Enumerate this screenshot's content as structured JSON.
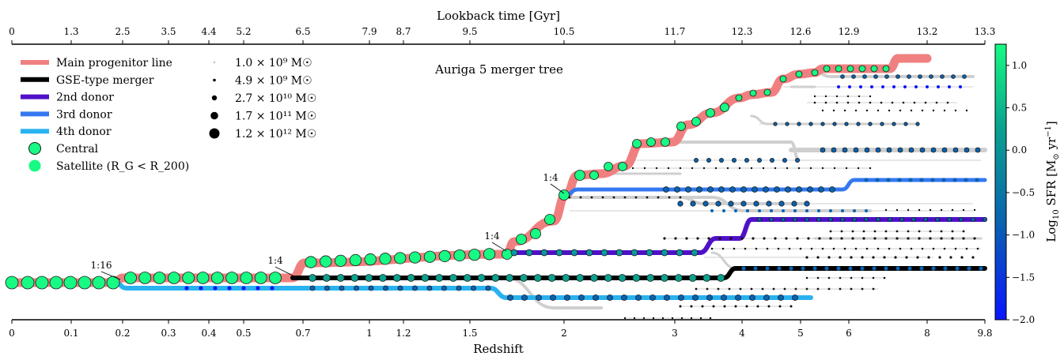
{
  "chart_data": {
    "type": "scatter",
    "title": "Auriga 5 merger tree",
    "bottom_axis": {
      "label": "Redshift",
      "ticks": [
        "0",
        "0.1",
        "0.2",
        "0.3",
        "0.4",
        "0.5",
        "0.7",
        "1",
        "1.2",
        "1.5",
        "2",
        "3",
        "4",
        "5",
        "6",
        "8",
        "9.8"
      ]
    },
    "top_axis": {
      "label": "Lookback time [Gyr]",
      "ticks": [
        "0",
        "1.3",
        "2.5",
        "3.5",
        "4.4",
        "5.2",
        "6.5",
        "7.9",
        "8.7",
        "9.5",
        "10.5",
        "11.7",
        "12.3",
        "12.6",
        "12.9",
        "13.2",
        "13.3"
      ]
    },
    "colorbar": {
      "label": "Log10 SFR [M☉ yr⁻¹]",
      "range": [
        -2.0,
        1.25
      ],
      "ticks": [
        "1.0",
        "0.5",
        "0.0",
        "−0.5",
        "−1.0",
        "−1.5",
        "−2.0"
      ],
      "colors": [
        "#0a14ff",
        "#0a62b0",
        "#0aa28f",
        "#17fa83"
      ]
    },
    "legend": {
      "lines": [
        {
          "label": "Main progenitor line",
          "color": "#f08080"
        },
        {
          "label": "GSE-type merger",
          "color": "#000000"
        },
        {
          "label": "2nd donor",
          "color": "#5010c8"
        },
        {
          "label": "3rd donor",
          "color": "#3478f0"
        },
        {
          "label": "4th donor",
          "color": "#2ab2f0"
        }
      ],
      "markers": [
        {
          "label": "Central"
        },
        {
          "label": "Satellite (R_G < R_200)"
        }
      ],
      "mass_sizes": [
        {
          "label": "1.0 × 10⁹ M☉"
        },
        {
          "label": "4.9 × 10⁹ M☉"
        },
        {
          "label": "2.7 × 10¹⁰ M☉"
        },
        {
          "label": "1.7 × 10¹¹ M☉"
        },
        {
          "label": "1.2 × 10¹² M☉"
        }
      ]
    },
    "merger_ratios": [
      "1:16",
      "1:4",
      "1:4",
      "1:4"
    ],
    "series": [
      {
        "name": "Main progenitor line",
        "color": "#f08080"
      },
      {
        "name": "GSE-type merger",
        "color": "#000000"
      },
      {
        "name": "2nd donor",
        "color": "#5010c8"
      },
      {
        "name": "3rd donor",
        "color": "#3478f0"
      },
      {
        "name": "4th donor",
        "color": "#2ab2f0"
      }
    ]
  }
}
